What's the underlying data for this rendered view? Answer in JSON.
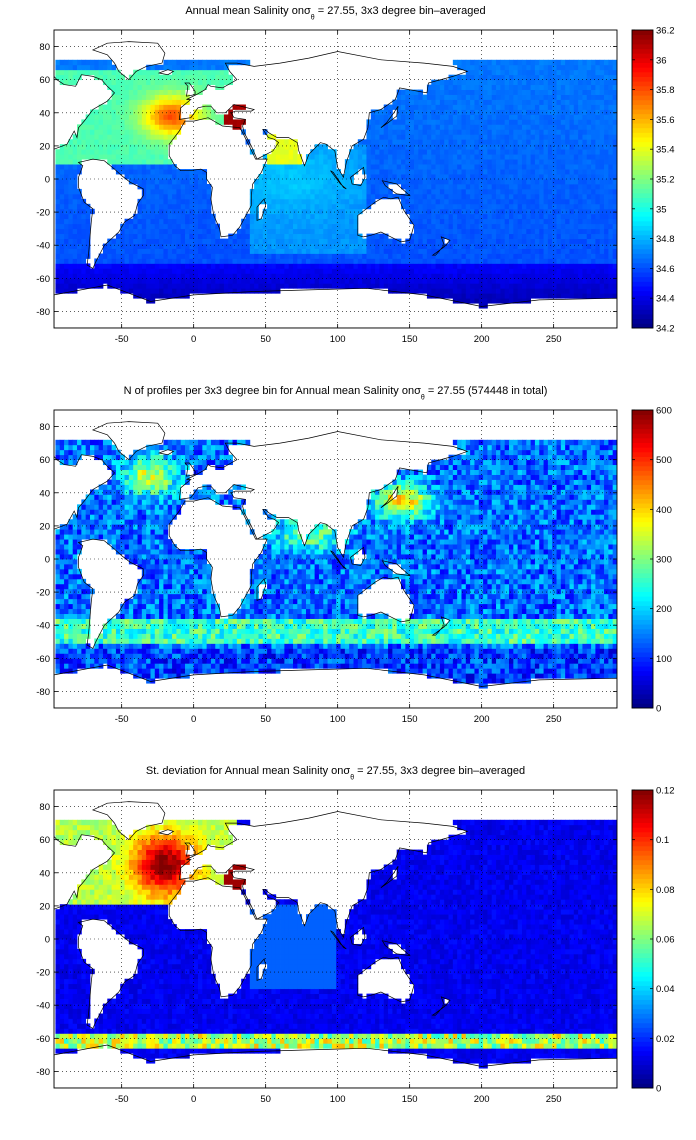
{
  "panels": [
    {
      "title_pre": "Annual mean Salinity on",
      "title_post": " = 27.55, 3x3 degree bin–averaged",
      "colorbar": {
        "min": 34.2,
        "max": 36.2,
        "ticks": [
          "34.2",
          "34.4",
          "34.6",
          "34.8",
          "35",
          "35.2",
          "35.4",
          "35.6",
          "35.8",
          "36",
          "36.2"
        ]
      }
    },
    {
      "title_pre": "N of profiles per 3x3 degree bin for Annual mean Salinity on",
      "title_post": " = 27.55 (574448 in total)",
      "colorbar": {
        "min": 0,
        "max": 600,
        "ticks": [
          "0",
          "100",
          "200",
          "300",
          "400",
          "500",
          "600"
        ]
      }
    },
    {
      "title_pre": "St. deviation for Annual mean Salinity on",
      "title_post": " = 27.55, 3x3 degree bin–averaged",
      "colorbar": {
        "min": 0,
        "max": 0.12,
        "ticks": [
          "0",
          "0.02",
          "0.04",
          "0.06",
          "0.08",
          "0.1",
          "0.12"
        ]
      }
    }
  ],
  "sigma_symbol": "σ",
  "theta_symbol": "θ",
  "map_axes": {
    "xlim": [
      -97,
      294
    ],
    "ylim": [
      -90,
      90
    ],
    "xticks": [
      "-50",
      "0",
      "50",
      "100",
      "150",
      "200",
      "250"
    ],
    "yticks": [
      "80",
      "60",
      "40",
      "20",
      "0",
      "-20",
      "-40",
      "-60",
      "-80"
    ],
    "grid": "dotted"
  },
  "colormap": "jet"
}
